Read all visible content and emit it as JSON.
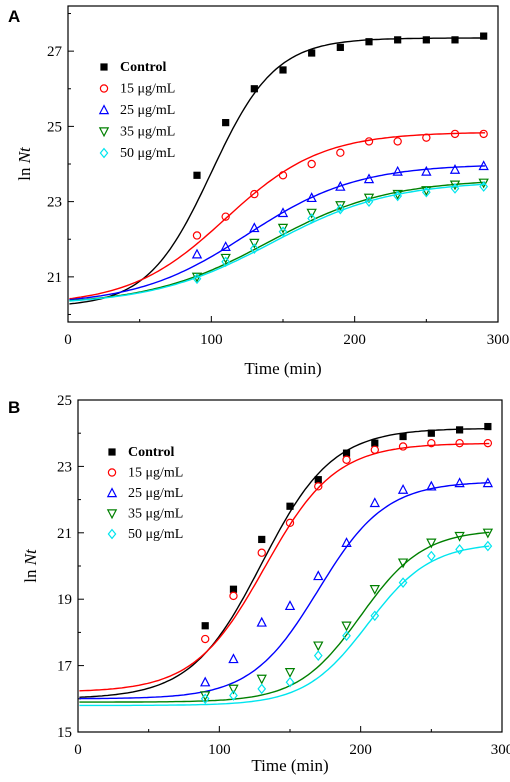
{
  "chart_data": [
    {
      "type": "line",
      "panel_label": "A",
      "xlabel": "Time (min)",
      "ylabel_prefix": "ln ",
      "ylabel_italic": "Nt",
      "xlim": [
        0,
        300
      ],
      "ylim": [
        19.8,
        28.2
      ],
      "xticks": [
        0,
        100,
        200,
        300
      ],
      "yticks": [
        21,
        23,
        25,
        27
      ],
      "grid": false,
      "legend_position": "left",
      "series": [
        {
          "name": "Control",
          "color": "#000000",
          "marker": "square",
          "x": [
            90,
            110,
            130,
            150,
            170,
            190,
            210,
            230,
            250,
            270,
            290
          ],
          "y": [
            23.7,
            25.1,
            26.0,
            26.5,
            26.95,
            27.1,
            27.25,
            27.3,
            27.3,
            27.3,
            27.4
          ],
          "fit": {
            "y0": 20.2,
            "A": 27.35,
            "k": 0.045,
            "t0": 100
          }
        },
        {
          "name": "15 μg/mL",
          "color": "#ff0000",
          "marker": "circle",
          "x": [
            90,
            110,
            130,
            150,
            170,
            190,
            210,
            230,
            250,
            270,
            290
          ],
          "y": [
            22.1,
            22.6,
            23.2,
            23.7,
            24.0,
            24.3,
            24.6,
            24.6,
            24.7,
            24.8,
            24.8
          ],
          "fit": {
            "y0": 20.25,
            "A": 24.85,
            "k": 0.03,
            "t0": 110
          }
        },
        {
          "name": "25 μg/mL",
          "color": "#0000ff",
          "marker": "triangle-up",
          "x": [
            90,
            110,
            130,
            150,
            170,
            190,
            210,
            230,
            250,
            270,
            290
          ],
          "y": [
            21.6,
            21.8,
            22.3,
            22.7,
            23.1,
            23.4,
            23.6,
            23.8,
            23.8,
            23.85,
            23.95
          ],
          "fit": {
            "y0": 20.25,
            "A": 24.0,
            "k": 0.026,
            "t0": 125
          }
        },
        {
          "name": "35 μg/mL",
          "color": "#008000",
          "marker": "triangle-down",
          "x": [
            90,
            110,
            130,
            150,
            170,
            190,
            210,
            230,
            250,
            270,
            290
          ],
          "y": [
            21.0,
            21.5,
            21.9,
            22.3,
            22.7,
            22.9,
            23.1,
            23.2,
            23.3,
            23.45,
            23.5
          ],
          "fit": {
            "y0": 20.25,
            "A": 23.6,
            "k": 0.024,
            "t0": 140
          }
        },
        {
          "name": "50 μg/mL",
          "color": "#00e5ee",
          "marker": "diamond",
          "x": [
            90,
            110,
            130,
            150,
            170,
            190,
            210,
            230,
            250,
            270,
            290
          ],
          "y": [
            20.95,
            21.4,
            21.75,
            22.2,
            22.55,
            22.8,
            23.0,
            23.15,
            23.25,
            23.35,
            23.4
          ],
          "fit": {
            "y0": 20.25,
            "A": 23.55,
            "k": 0.024,
            "t0": 142
          }
        }
      ]
    },
    {
      "type": "line",
      "panel_label": "B",
      "xlabel": "Time (min)",
      "ylabel_prefix": "ln ",
      "ylabel_italic": "Nt",
      "xlim": [
        0,
        300
      ],
      "ylim": [
        15,
        25
      ],
      "xticks": [
        0,
        100,
        200,
        300
      ],
      "yticks": [
        15,
        17,
        19,
        21,
        23,
        25
      ],
      "grid": false,
      "legend_position": "top-left",
      "series": [
        {
          "name": "Control",
          "color": "#000000",
          "marker": "square",
          "x": [
            90,
            110,
            130,
            150,
            170,
            190,
            210,
            230,
            250,
            270,
            290
          ],
          "y": [
            18.2,
            19.3,
            20.8,
            21.8,
            22.6,
            23.4,
            23.7,
            23.9,
            24.0,
            24.1,
            24.2
          ],
          "fit": {
            "y0": 16.0,
            "A": 24.15,
            "k": 0.04,
            "t0": 130
          }
        },
        {
          "name": "15 μg/mL",
          "color": "#ff0000",
          "marker": "circle",
          "x": [
            90,
            110,
            130,
            150,
            170,
            190,
            210,
            230,
            250,
            270,
            290
          ],
          "y": [
            17.8,
            19.1,
            20.4,
            21.3,
            22.4,
            23.2,
            23.5,
            23.6,
            23.7,
            23.7,
            23.7
          ],
          "fit": {
            "y0": 16.2,
            "A": 23.7,
            "k": 0.04,
            "t0": 132
          }
        },
        {
          "name": "25 μg/mL",
          "color": "#0000ff",
          "marker": "triangle-up",
          "x": [
            90,
            110,
            130,
            150,
            170,
            190,
            210,
            230,
            250,
            270,
            290
          ],
          "y": [
            16.5,
            17.2,
            18.3,
            18.8,
            19.7,
            20.7,
            21.9,
            22.3,
            22.4,
            22.5,
            22.5
          ],
          "fit": {
            "y0": 16.0,
            "A": 22.55,
            "k": 0.042,
            "t0": 170
          }
        },
        {
          "name": "35 μg/mL",
          "color": "#008000",
          "marker": "triangle-down",
          "x": [
            90,
            110,
            130,
            150,
            170,
            190,
            210,
            230,
            250,
            270,
            290
          ],
          "y": [
            16.1,
            16.3,
            16.6,
            16.8,
            17.6,
            18.2,
            19.3,
            20.1,
            20.7,
            20.9,
            21.0
          ],
          "fit": {
            "y0": 15.9,
            "A": 21.1,
            "k": 0.045,
            "t0": 200
          }
        },
        {
          "name": "50 μg/mL",
          "color": "#00e5ee",
          "marker": "diamond",
          "x": [
            90,
            110,
            130,
            150,
            170,
            190,
            210,
            230,
            250,
            270,
            290
          ],
          "y": [
            16.0,
            16.1,
            16.3,
            16.5,
            17.3,
            17.9,
            18.5,
            19.5,
            20.3,
            20.5,
            20.6
          ],
          "fit": {
            "y0": 15.8,
            "A": 20.7,
            "k": 0.045,
            "t0": 205
          }
        }
      ]
    }
  ]
}
